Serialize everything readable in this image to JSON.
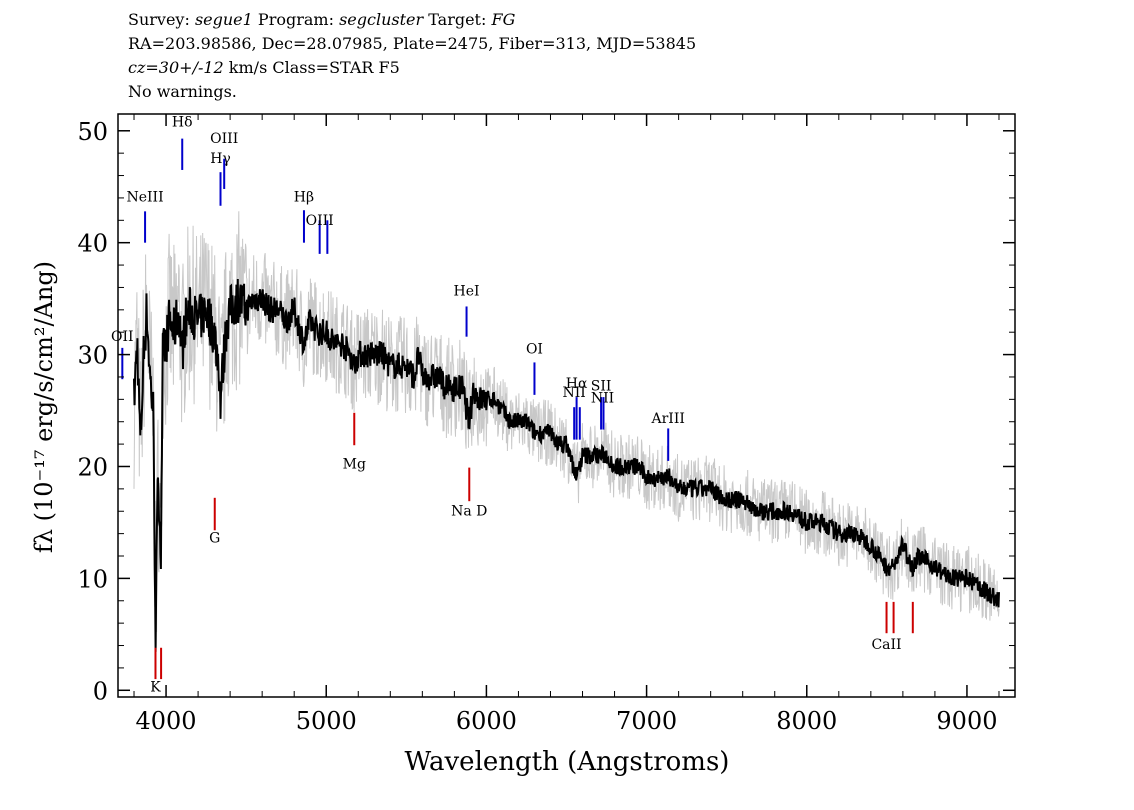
{
  "header": {
    "survey_label": "Survey:",
    "survey": "segue1",
    "program_label": "Program:",
    "program": "segcluster",
    "target_label": "Target:",
    "target": "FG",
    "line2": "RA=203.98586, Dec=28.07985, Plate=2475, Fiber=313, MJD=53845",
    "cz": "cz=30+/-12",
    "cz_rest": " km/s Class=STAR F5",
    "warnings": "No warnings."
  },
  "chart_data": {
    "type": "line",
    "xlabel": "Wavelength (Angstroms)",
    "ylabel": "fλ (10⁻¹⁷ erg/s/cm²/Ang)",
    "xlim": [
      3700,
      9300
    ],
    "ylim": [
      -0.6,
      51.5
    ],
    "x_ticks": [
      4000,
      5000,
      6000,
      7000,
      8000,
      9000
    ],
    "y_ticks": [
      0,
      10,
      20,
      30,
      40,
      50
    ],
    "grid": false,
    "series": [
      {
        "color": "#000000",
        "points": [
          [
            3800,
            26
          ],
          [
            3820,
            31
          ],
          [
            3840,
            22
          ],
          [
            3860,
            30
          ],
          [
            3880,
            34
          ],
          [
            3900,
            28
          ],
          [
            3920,
            25
          ],
          [
            3935,
            5
          ],
          [
            3950,
            20
          ],
          [
            3968,
            12
          ],
          [
            3980,
            30
          ],
          [
            4000,
            31
          ],
          [
            4020,
            33
          ],
          [
            4050,
            32
          ],
          [
            4080,
            34
          ],
          [
            4101,
            30
          ],
          [
            4120,
            33
          ],
          [
            4150,
            34
          ],
          [
            4200,
            33
          ],
          [
            4250,
            34
          ],
          [
            4300,
            32
          ],
          [
            4330,
            29
          ],
          [
            4340,
            26
          ],
          [
            4350,
            28
          ],
          [
            4380,
            33
          ],
          [
            4400,
            34
          ],
          [
            4450,
            35
          ],
          [
            4500,
            34
          ],
          [
            4550,
            35
          ],
          [
            4600,
            35
          ],
          [
            4650,
            34
          ],
          [
            4700,
            34
          ],
          [
            4750,
            33
          ],
          [
            4800,
            34
          ],
          [
            4861,
            31
          ],
          [
            4900,
            33
          ],
          [
            4950,
            32
          ],
          [
            5000,
            32
          ],
          [
            5050,
            31
          ],
          [
            5100,
            31
          ],
          [
            5150,
            30
          ],
          [
            5175,
            29
          ],
          [
            5200,
            30
          ],
          [
            5250,
            30
          ],
          [
            5300,
            30
          ],
          [
            5350,
            30
          ],
          [
            5400,
            29
          ],
          [
            5450,
            29
          ],
          [
            5500,
            29
          ],
          [
            5550,
            28
          ],
          [
            5577,
            30
          ],
          [
            5600,
            28
          ],
          [
            5650,
            28
          ],
          [
            5700,
            28
          ],
          [
            5750,
            27
          ],
          [
            5800,
            27
          ],
          [
            5850,
            27
          ],
          [
            5893,
            24
          ],
          [
            5920,
            27
          ],
          [
            5950,
            26
          ],
          [
            6000,
            26
          ],
          [
            6050,
            26
          ],
          [
            6100,
            25
          ],
          [
            6150,
            24
          ],
          [
            6200,
            24
          ],
          [
            6250,
            24
          ],
          [
            6300,
            23
          ],
          [
            6350,
            23
          ],
          [
            6400,
            23
          ],
          [
            6450,
            22
          ],
          [
            6500,
            22
          ],
          [
            6563,
            19
          ],
          [
            6600,
            21
          ],
          [
            6650,
            21
          ],
          [
            6700,
            21
          ],
          [
            6750,
            21
          ],
          [
            6800,
            20
          ],
          [
            6850,
            20
          ],
          [
            6900,
            20
          ],
          [
            6950,
            20
          ],
          [
            7000,
            19
          ],
          [
            7050,
            19
          ],
          [
            7100,
            19
          ],
          [
            7150,
            19
          ],
          [
            7200,
            18
          ],
          [
            7300,
            18
          ],
          [
            7400,
            18
          ],
          [
            7500,
            17
          ],
          [
            7600,
            17
          ],
          [
            7700,
            16
          ],
          [
            7800,
            16
          ],
          [
            7900,
            16
          ],
          [
            8000,
            15
          ],
          [
            8100,
            15
          ],
          [
            8200,
            14
          ],
          [
            8300,
            14
          ],
          [
            8400,
            13
          ],
          [
            8498,
            11
          ],
          [
            8542,
            11
          ],
          [
            8600,
            13
          ],
          [
            8662,
            11
          ],
          [
            8700,
            12
          ],
          [
            8800,
            11
          ],
          [
            8900,
            10
          ],
          [
            9000,
            10
          ],
          [
            9100,
            9
          ],
          [
            9200,
            8
          ]
        ]
      }
    ],
    "error_band_color": "#c8c8c8",
    "lines": [
      {
        "label": "Hδ",
        "wl": 4101,
        "color": "#0000cc",
        "y0": 46.5,
        "y1": 49.3,
        "label_y": 50.4
      },
      {
        "label": "Hγ",
        "wl": 4340,
        "color": "#0000cc",
        "y0": 43.3,
        "y1": 46.3,
        "label_y": 47.1
      },
      {
        "label": "OIII",
        "wl": 4363,
        "color": "#0000cc",
        "y0": 44.8,
        "y1": 47.5,
        "label_y": 48.9
      },
      {
        "label": "NeIII",
        "wl": 3869,
        "color": "#0000cc",
        "y0": 40.0,
        "y1": 42.8,
        "label_y": 43.7
      },
      {
        "label": "Hβ",
        "wl": 4861,
        "color": "#0000cc",
        "y0": 40.0,
        "y1": 42.9,
        "label_y": 43.7
      },
      {
        "label": "OIII",
        "wl": 4959,
        "color": "#0000cc",
        "y0": 39.0,
        "y1": 42.0,
        "label_y": 41.6
      },
      {
        "label": "OIII",
        "wl": 5007,
        "color": "#0000cc",
        "y0": 39.0,
        "y1": 42.0,
        "label_y": null
      },
      {
        "label": "OII",
        "wl": 3727,
        "color": "#0000cc",
        "y0": 27.8,
        "y1": 30.6,
        "label_y": 31.2
      },
      {
        "label": "HeI",
        "wl": 5876,
        "color": "#0000cc",
        "y0": 31.6,
        "y1": 34.3,
        "label_y": 35.3
      },
      {
        "label": "OI",
        "wl": 6300,
        "color": "#0000cc",
        "y0": 26.4,
        "y1": 29.3,
        "label_y": 30.1
      },
      {
        "label": "NII",
        "wl": 6548,
        "color": "#0000cc",
        "y0": 22.4,
        "y1": 25.3,
        "label_y": 26.2
      },
      {
        "label": "Hα",
        "wl": 6563,
        "color": "#0000cc",
        "y0": 22.4,
        "y1": 26.2,
        "label_y": 27.0
      },
      {
        "label": "NII",
        "wl": 6583,
        "color": "#0000cc",
        "y0": 22.4,
        "y1": 25.3,
        "label_y": null
      },
      {
        "label": "SII",
        "wl": 6716,
        "color": "#0000cc",
        "y0": 23.3,
        "y1": 26.2,
        "label_y": 26.8
      },
      {
        "label": "SII",
        "wl": 6731,
        "color": "#0000cc",
        "y0": 23.3,
        "y1": 26.2,
        "label_y": null
      },
      {
        "label": "NII",
        "wl": 6725,
        "color": "#0000cc",
        "y0": null,
        "y1": null,
        "label_y": 25.7
      },
      {
        "label": "ArIII",
        "wl": 7135,
        "color": "#0000cc",
        "y0": 20.5,
        "y1": 23.4,
        "label_y": 23.9
      },
      {
        "label": "Mg",
        "wl": 5175,
        "color": "#cc0000",
        "y0": 21.9,
        "y1": 24.8,
        "label_y": 19.8
      },
      {
        "label": "Na D",
        "wl": 5893,
        "color": "#cc0000",
        "y0": 16.9,
        "y1": 19.9,
        "label_y": 15.6
      },
      {
        "label": "G",
        "wl": 4304,
        "color": "#cc0000",
        "y0": 14.3,
        "y1": 17.2,
        "label_y": 13.2
      },
      {
        "label": "K",
        "wl": 3934,
        "color": "#cc0000",
        "y0": 1.0,
        "y1": 3.8,
        "label_y": -0.1
      },
      {
        "label": "H",
        "wl": 3969,
        "color": "#cc0000",
        "y0": 1.0,
        "y1": 3.8,
        "label_y": null
      },
      {
        "label": "CaII",
        "wl": 8498,
        "color": "#cc0000",
        "y0": 5.1,
        "y1": 7.9,
        "label_y": 3.7
      },
      {
        "label": "CaII",
        "wl": 8542,
        "color": "#cc0000",
        "y0": 5.1,
        "y1": 7.9,
        "label_y": null
      },
      {
        "label": "CaII",
        "wl": 8662,
        "color": "#cc0000",
        "y0": 5.1,
        "y1": 7.9,
        "label_y": null
      }
    ]
  }
}
